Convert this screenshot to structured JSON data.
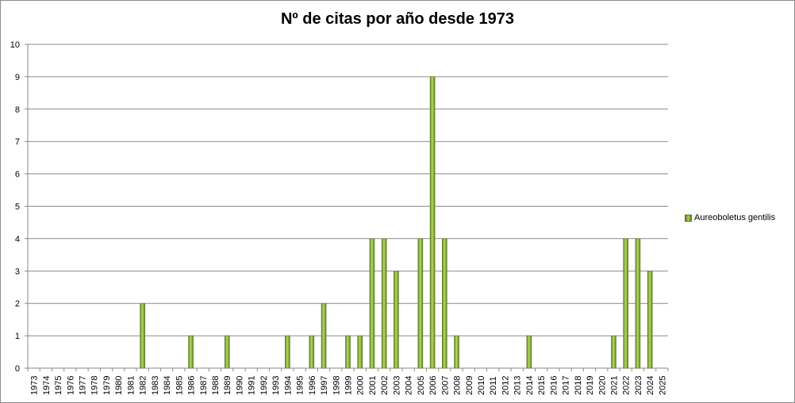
{
  "chart_data": {
    "type": "bar",
    "title": "Nº de citas por año desde 1973",
    "xlabel": "",
    "ylabel": "",
    "ylim": [
      0,
      10
    ],
    "yticks": [
      0,
      1,
      2,
      3,
      4,
      5,
      6,
      7,
      8,
      9,
      10
    ],
    "grid": true,
    "legend_position": "right",
    "bar_color": "#8fbf3a",
    "categories": [
      "1973",
      "1974",
      "1975",
      "1976",
      "1977",
      "1978",
      "1979",
      "1980",
      "1981",
      "1982",
      "1983",
      "1984",
      "1985",
      "1986",
      "1987",
      "1988",
      "1989",
      "1990",
      "1991",
      "1992",
      "1993",
      "1994",
      "1995",
      "1996",
      "1997",
      "1998",
      "1999",
      "2000",
      "2001",
      "2002",
      "2003",
      "2004",
      "2005",
      "2006",
      "2007",
      "2008",
      "2009",
      "2010",
      "2011",
      "2012",
      "2013",
      "2014",
      "2015",
      "2016",
      "2017",
      "2018",
      "2019",
      "2020",
      "2021",
      "2022",
      "2023",
      "2024",
      "2025"
    ],
    "series": [
      {
        "name": "Aureoboletus gentilis",
        "values": [
          0,
          0,
          0,
          0,
          0,
          0,
          0,
          0,
          0,
          2,
          0,
          0,
          0,
          1,
          0,
          0,
          1,
          0,
          0,
          0,
          0,
          1,
          0,
          1,
          2,
          0,
          1,
          1,
          4,
          4,
          3,
          0,
          4,
          9,
          4,
          1,
          0,
          0,
          0,
          0,
          0,
          1,
          0,
          0,
          0,
          0,
          0,
          0,
          1,
          4,
          4,
          3,
          0
        ]
      }
    ]
  }
}
